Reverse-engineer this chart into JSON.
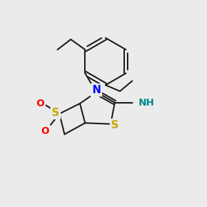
{
  "background_color": "#ebebeb",
  "bond_color": "#1a1a1a",
  "figsize": [
    3.0,
    3.0
  ],
  "dpi": 100,
  "N_color": "#0000ff",
  "S_color": "#c8a800",
  "O_color": "#ff0000",
  "NH_color": "#008b8b",
  "lw": 1.5,
  "xlim": [
    0,
    10
  ],
  "ylim": [
    0,
    10
  ]
}
